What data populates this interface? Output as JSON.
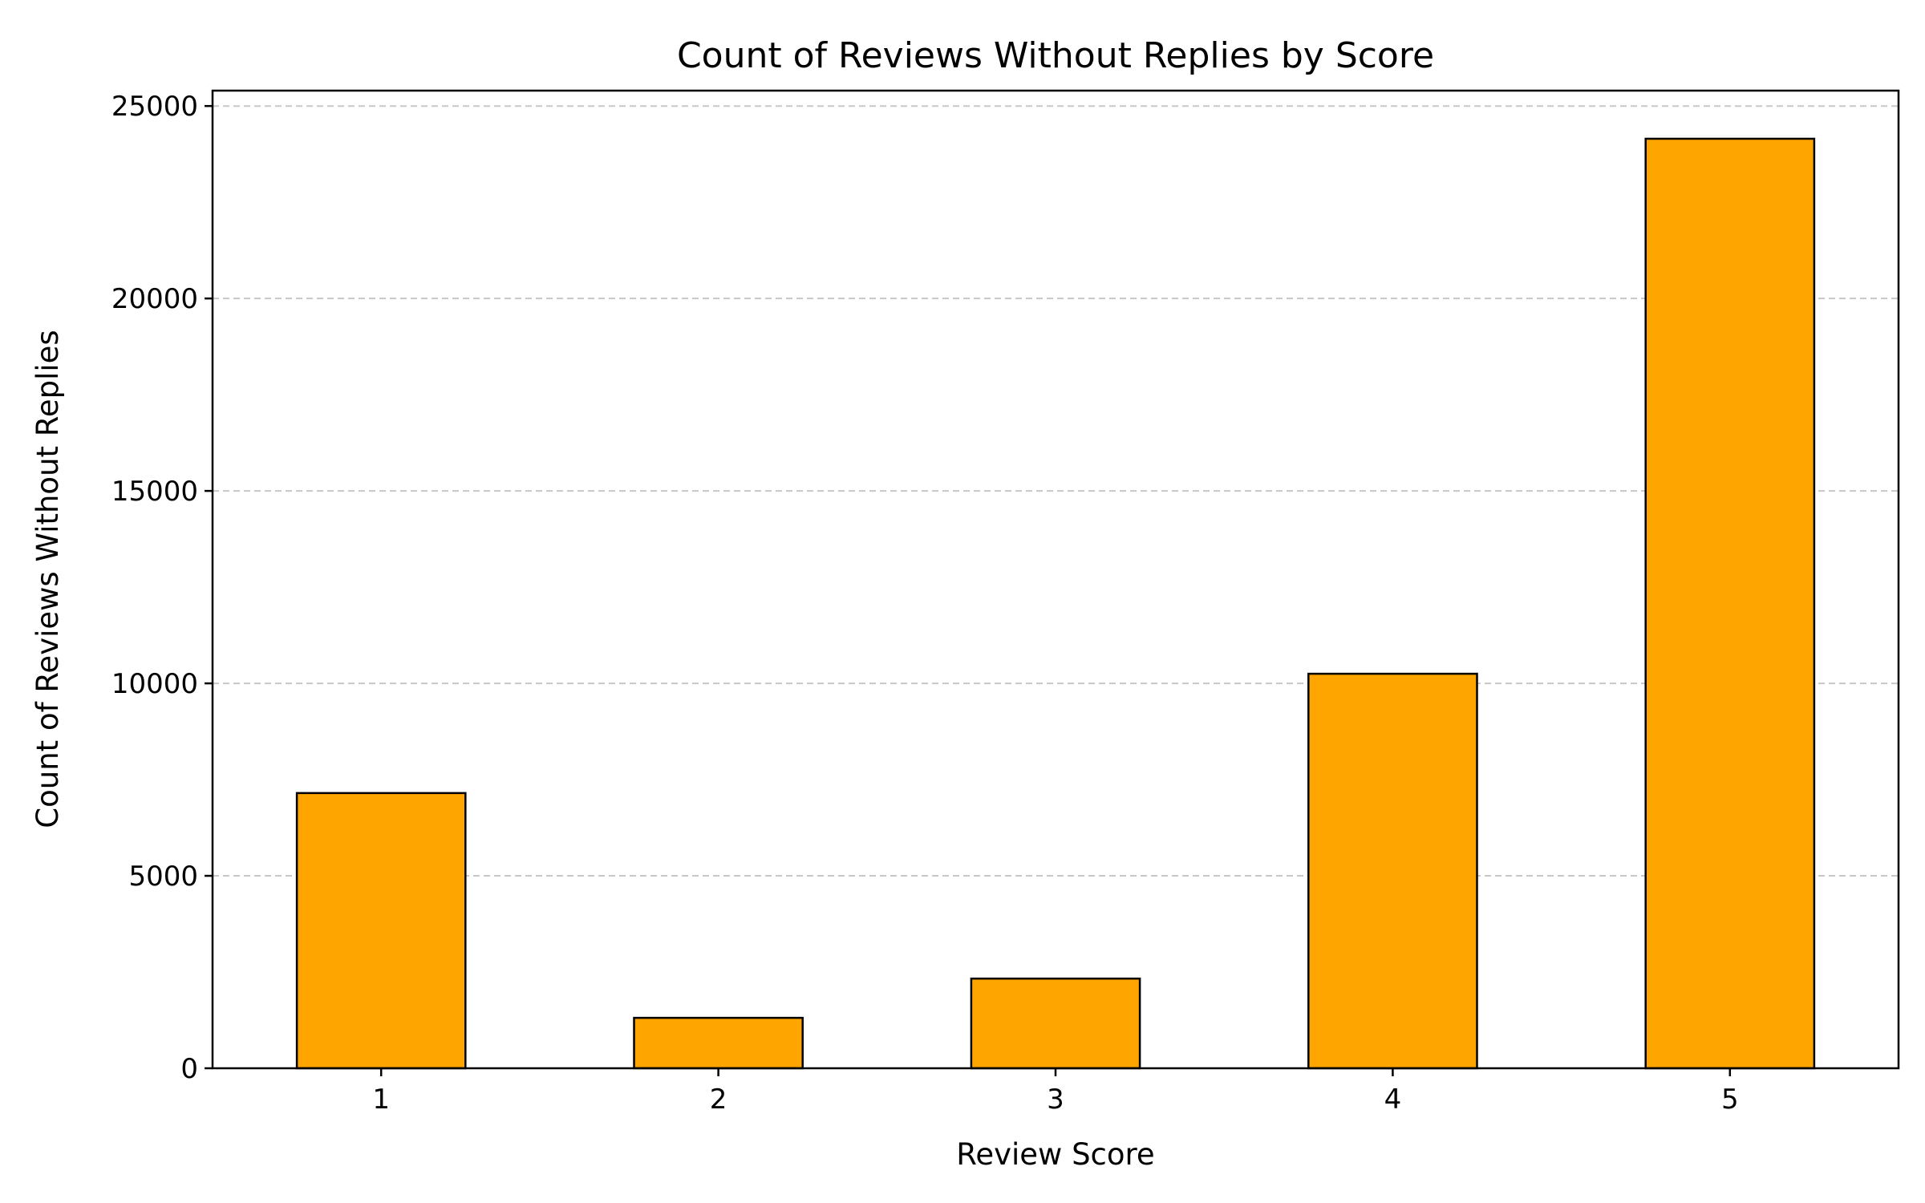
{
  "chart_data": {
    "type": "bar",
    "title": "Count of Reviews Without Replies by Score",
    "xlabel": "Review Score",
    "ylabel": "Count of Reviews Without Replies",
    "categories": [
      "1",
      "2",
      "3",
      "4",
      "5"
    ],
    "values": [
      7150,
      1310,
      2330,
      10250,
      24150
    ],
    "ylim": [
      0,
      25400
    ],
    "yticks": [
      0,
      5000,
      10000,
      15000,
      20000,
      25000
    ],
    "ytick_labels": [
      "0",
      "5000",
      "10000",
      "15000",
      "20000",
      "25000"
    ],
    "grid": "y-axis dashed",
    "legend": "none",
    "bar_color": "#FFA500",
    "bar_edge_color": "#000000",
    "grid_color": "#c8c8c8"
  }
}
